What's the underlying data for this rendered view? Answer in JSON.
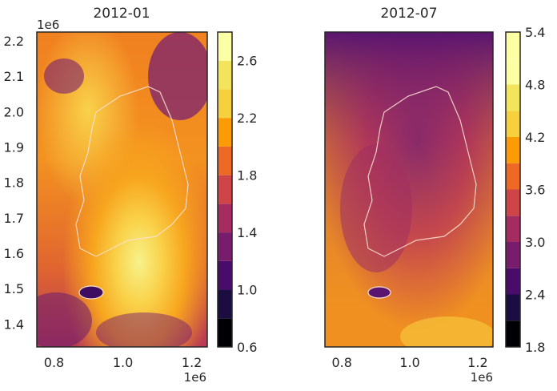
{
  "chart_data": [
    {
      "type": "heatmap",
      "title": "2012-01",
      "x_ticks": [
        "0.8",
        "1.0",
        "1.2"
      ],
      "x_tick_values": [
        0.8,
        1.0,
        1.2
      ],
      "x_offset": "1e6",
      "xlim": [
        0.75,
        1.245
      ],
      "y_ticks": [
        "1.4",
        "1.5",
        "1.6",
        "1.7",
        "1.8",
        "1.9",
        "2.0",
        "2.1",
        "2.2"
      ],
      "y_tick_values": [
        1.4,
        1.5,
        1.6,
        1.7,
        1.8,
        1.9,
        2.0,
        2.1,
        2.2
      ],
      "y_offset": "1e6",
      "ylim": [
        1.335,
        2.225
      ],
      "colorbar": {
        "ticks": [
          "0.6",
          "1.0",
          "1.4",
          "1.8",
          "2.2",
          "2.6"
        ],
        "tick_values": [
          0.6,
          1.0,
          1.4,
          1.8,
          2.2,
          2.6
        ],
        "levels": [
          0.6,
          0.8,
          1.0,
          1.2,
          1.4,
          1.6,
          1.8,
          2.0,
          2.2,
          2.4,
          2.6,
          2.8
        ],
        "colors": [
          "#000004",
          "#1b0c41",
          "#4a0c6b",
          "#781c6d",
          "#a52c60",
          "#cf4446",
          "#ed6925",
          "#fb9b06",
          "#f7d13d",
          "#f2e55c",
          "#fcffa4"
        ]
      }
    },
    {
      "type": "heatmap",
      "title": "2012-07",
      "x_ticks": [
        "0.8",
        "1.0",
        "1.2"
      ],
      "x_tick_values": [
        0.8,
        1.0,
        1.2
      ],
      "x_offset": "1e6",
      "xlim": [
        0.75,
        1.245
      ],
      "y_ticks": [],
      "colorbar": {
        "ticks": [
          "1.8",
          "2.4",
          "3.0",
          "3.6",
          "4.2",
          "4.8",
          "5.4"
        ],
        "tick_values": [
          1.8,
          2.4,
          3.0,
          3.6,
          4.2,
          4.8,
          5.4
        ],
        "levels": [
          1.8,
          2.1,
          2.4,
          2.7,
          3.0,
          3.3,
          3.6,
          3.9,
          4.2,
          4.5,
          4.8,
          5.1,
          5.4
        ],
        "colors": [
          "#000004",
          "#1b0c41",
          "#4a0c6b",
          "#781c6d",
          "#a52c60",
          "#cf4446",
          "#ed6925",
          "#fb9b06",
          "#f7d13d",
          "#f2e55c",
          "#fcffa4",
          "#fcffa4"
        ]
      }
    }
  ]
}
